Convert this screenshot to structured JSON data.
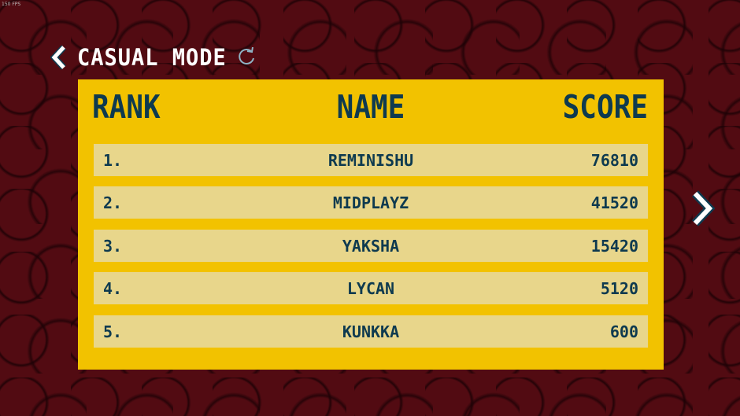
{
  "fps": "150 FPS",
  "header": {
    "title": "CASUAL MODE",
    "back_icon": "chevron-left-icon",
    "refresh_icon": "refresh-icon"
  },
  "colors": {
    "panel": "#f2c200",
    "row": "#e8d68b",
    "text": "#0e3a4f",
    "background": "#520b12"
  },
  "table": {
    "columns": [
      "RANK",
      "NAME",
      "SCORE"
    ],
    "rows": [
      {
        "rank": "1.",
        "name": "REMINISHU",
        "score": "76810"
      },
      {
        "rank": "2.",
        "name": "MIDPLAYZ",
        "score": "41520"
      },
      {
        "rank": "3.",
        "name": "YAKSHA",
        "score": "15420"
      },
      {
        "rank": "4.",
        "name": "LYCAN",
        "score": "5120"
      },
      {
        "rank": "5.",
        "name": "KUNKKA",
        "score": "600"
      }
    ]
  },
  "next_icon": "chevron-right-icon"
}
